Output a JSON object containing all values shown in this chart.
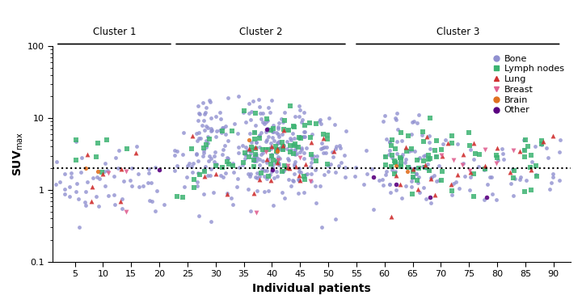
{
  "xlabel": "Individual patients",
  "ylim": [
    0.1,
    100
  ],
  "xlim": [
    1,
    93
  ],
  "dotted_line_y": 2.0,
  "xticks": [
    5,
    10,
    15,
    20,
    25,
    30,
    35,
    40,
    45,
    50,
    55,
    60,
    65,
    70,
    75,
    80,
    85,
    90
  ],
  "clusters": [
    {
      "label": "Cluster 1",
      "x_start": 2,
      "x_end": 22
    },
    {
      "label": "Cluster 2",
      "x_start": 23,
      "x_end": 53
    },
    {
      "label": "Cluster 3",
      "x_start": 55,
      "x_end": 91
    }
  ],
  "series": [
    {
      "name": "Bone",
      "color": "#9090d0",
      "marker": "o",
      "size": 12,
      "zorder": 2
    },
    {
      "name": "Lymph nodes",
      "color": "#3cb371",
      "marker": "s",
      "size": 16,
      "zorder": 3
    },
    {
      "name": "Lung",
      "color": "#d03030",
      "marker": "^",
      "size": 18,
      "zorder": 4
    },
    {
      "name": "Breast",
      "color": "#e06090",
      "marker": "v",
      "size": 18,
      "zorder": 4
    },
    {
      "name": "Brain",
      "color": "#e07020",
      "marker": "o",
      "size": 14,
      "zorder": 4
    },
    {
      "name": "Other",
      "color": "#5a0080",
      "marker": "o",
      "size": 16,
      "zorder": 4
    }
  ],
  "background_color": "#ffffff",
  "seed": 12345
}
